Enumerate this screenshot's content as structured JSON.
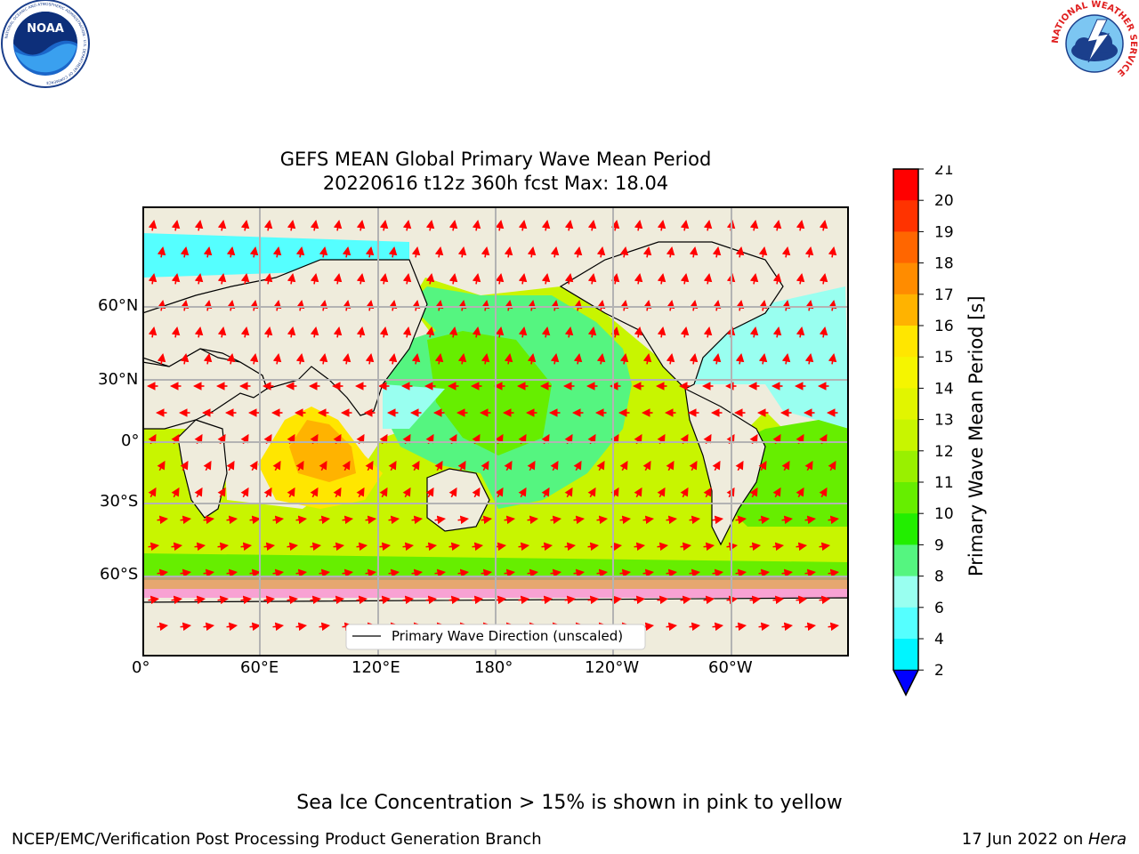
{
  "header": {
    "title_line1": "GEFS MEAN Global Primary Wave Mean Period",
    "title_line2": "20220616 t12z 360h fcst   Max: 18.04"
  },
  "logos": {
    "left_text": "NOAA",
    "left_ring_text": "NATIONAL OCEANIC AND ATMOSPHERIC ADMINISTRATION · U.S. DEPARTMENT OF COMMERCE",
    "right_ring_text": "NATIONAL WEATHER SERVICE"
  },
  "map": {
    "x_ticks": [
      "0°",
      "60°E",
      "120°E",
      "180°",
      "120°W",
      "60°W"
    ],
    "y_ticks": [
      "60°N",
      "30°N",
      "0°",
      "30°S",
      "60°S"
    ],
    "legend_label": "Primary Wave Direction (unscaled)",
    "land_color": "#efecdc",
    "arrow_color": "#ff0000",
    "grid": true
  },
  "colorbar": {
    "title": "Primary Wave Mean Period [s]",
    "levels": [
      "21",
      "20",
      "19",
      "18",
      "17",
      "16",
      "15",
      "14",
      "13",
      "12",
      "11",
      "10",
      "9",
      "8",
      "6",
      "4",
      "2"
    ],
    "colors": [
      "#ff0000",
      "#ff3300",
      "#ff6600",
      "#ff8c00",
      "#ffb300",
      "#ffe600",
      "#f5f500",
      "#e1f500",
      "#c8f500",
      "#99f000",
      "#66ee00",
      "#22ee00",
      "#55f580",
      "#99fff0",
      "#55ffff",
      "#00f5ff",
      "#00c8ff",
      "#0066ff"
    ],
    "extend_color": "#0000ff"
  },
  "footer": {
    "note": "Sea Ice Concentration > 15% is shown in pink to yellow",
    "left": "NCEP/EMC/Verification Post Processing Product Generation Branch",
    "date": "17 Jun 2022 on ",
    "host": "Hera"
  }
}
